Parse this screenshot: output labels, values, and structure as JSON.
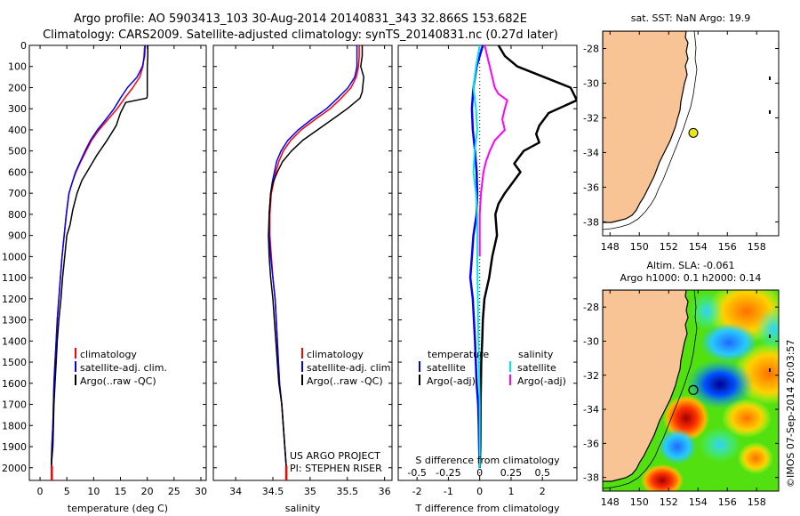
{
  "header": {
    "line1": "Argo profile: AO 5903413_103 30-Aug-2014 20140831_343 32.866S 153.682E",
    "line2": "Climatology: CARS2009. Satellite-adjusted climatology: synTS_20140831.nc (0.27d later)"
  },
  "colors": {
    "climatology": "#ff0000",
    "satellite": "#0000ff",
    "argo": "#000000",
    "sal_satellite": "#00e5ee",
    "sal_argo": "#ff00ff",
    "land": "#f8c496",
    "float_marker": "#e6e619"
  },
  "depth_axis": {
    "ticks": [
      0,
      100,
      200,
      300,
      400,
      500,
      600,
      700,
      800,
      900,
      1000,
      1100,
      1200,
      1300,
      1400,
      1500,
      1600,
      1700,
      1800,
      1900,
      2000
    ],
    "range": [
      0,
      2060
    ]
  },
  "chart_data": [
    {
      "type": "line",
      "xlabel": "temperature (deg C)",
      "xlim": [
        -2,
        31
      ],
      "xticks": [
        0,
        5,
        10,
        15,
        20,
        25,
        30
      ],
      "ylim": [
        0,
        2060
      ],
      "legend": {
        "items": [
          "climatology",
          "satellite-adj. clim.",
          "Argo(..raw -QC)"
        ],
        "placement": "bottom-right"
      },
      "series": [
        {
          "name": "climatology",
          "color": "#ff0000",
          "x": [
            19.5,
            19.4,
            19.2,
            18.6,
            17.3,
            15.8,
            14.4,
            12.7,
            11.0,
            9.6,
            8.6,
            7.6,
            6.7,
            6.0,
            5.4,
            4.9,
            4.5,
            4.1,
            3.8,
            3.5,
            3.2,
            3.0,
            2.8,
            2.6,
            2.5,
            2.4,
            2.2,
            2.1
          ],
          "y": [
            0,
            50,
            100,
            150,
            200,
            250,
            300,
            350,
            400,
            450,
            500,
            550,
            600,
            650,
            700,
            800,
            900,
            1000,
            1100,
            1200,
            1300,
            1400,
            1500,
            1600,
            1700,
            1800,
            1900,
            2000
          ]
        },
        {
          "name": "satellite-adj. clim.",
          "color": "#0000ff",
          "x": [
            19.6,
            19.5,
            19.1,
            18.1,
            16.3,
            15.0,
            13.8,
            12.3,
            10.7,
            9.4,
            8.4,
            7.5,
            6.6,
            6.0,
            5.4,
            4.9,
            4.5,
            4.1,
            3.8,
            3.5,
            3.2,
            3.0,
            2.8,
            2.6,
            2.5,
            2.4,
            2.2,
            2.1
          ],
          "y": [
            0,
            50,
            100,
            150,
            200,
            250,
            300,
            350,
            400,
            450,
            500,
            550,
            600,
            650,
            700,
            800,
            900,
            1000,
            1100,
            1200,
            1300,
            1400,
            1500,
            1600,
            1700,
            1800,
            1900,
            2000
          ]
        },
        {
          "name": "Argo(..raw -QC)",
          "color": "#000000",
          "x": [
            20.1,
            20.1,
            20.0,
            20.0,
            20.0,
            19.9,
            16.0,
            15.0,
            14.2,
            12.5,
            10.6,
            9.2,
            7.8,
            6.9,
            6.1,
            5.6,
            5.0,
            4.6,
            4.2,
            3.9,
            3.5,
            3.2,
            3.0,
            2.8,
            2.6,
            2.5,
            2.4,
            2.2,
            2.1
          ],
          "y": [
            0,
            50,
            100,
            200,
            240,
            250,
            270,
            320,
            380,
            450,
            520,
            580,
            640,
            700,
            780,
            850,
            900,
            1000,
            1100,
            1200,
            1300,
            1400,
            1500,
            1600,
            1700,
            1800,
            1900,
            1960,
            2000
          ]
        },
        {
          "name": "",
          "color": "#ff0000",
          "x": [
            2.2,
            2.2
          ],
          "y": [
            1990,
            2060
          ]
        }
      ]
    },
    {
      "type": "line",
      "xlabel": "salinity",
      "xlim": [
        33.7,
        36.1
      ],
      "xticks": [
        34,
        34.5,
        35,
        35.5,
        36
      ],
      "ylim": [
        0,
        2060
      ],
      "legend": {
        "items": [
          "climatology",
          "satellite-adj. clim.",
          "Argo(..raw -QC)"
        ],
        "placement": "bottom-right"
      },
      "annotation": [
        "US ARGO PROJECT",
        "PI: STEPHEN RISER"
      ],
      "series": [
        {
          "name": "climatology",
          "color": "#ff0000",
          "x": [
            35.66,
            35.66,
            35.65,
            35.62,
            35.55,
            35.42,
            35.27,
            35.07,
            34.88,
            34.74,
            34.64,
            34.58,
            34.54,
            34.51,
            34.48,
            34.46,
            34.46,
            34.48,
            34.5,
            34.53,
            34.56,
            34.59,
            34.62,
            34.64,
            34.66,
            34.68
          ],
          "y": [
            0,
            50,
            100,
            150,
            200,
            250,
            300,
            350,
            400,
            450,
            500,
            550,
            600,
            650,
            700,
            800,
            900,
            1000,
            1100,
            1200,
            1400,
            1600,
            1700,
            1800,
            1900,
            2000
          ]
        },
        {
          "name": "satellite-adj. clim.",
          "color": "#0000ff",
          "x": [
            35.63,
            35.63,
            35.63,
            35.6,
            35.51,
            35.37,
            35.22,
            35.02,
            34.84,
            34.7,
            34.61,
            34.55,
            34.52,
            34.49,
            34.47,
            34.45,
            34.45,
            34.47,
            34.5,
            34.53,
            34.56,
            34.59,
            34.62,
            34.64,
            34.66,
            34.68
          ],
          "y": [
            0,
            50,
            100,
            150,
            200,
            250,
            300,
            350,
            400,
            450,
            500,
            550,
            600,
            650,
            700,
            800,
            900,
            1000,
            1100,
            1200,
            1400,
            1600,
            1700,
            1800,
            1900,
            2000
          ]
        },
        {
          "name": "Argo(..raw -QC)",
          "color": "#000000",
          "x": [
            35.7,
            35.7,
            35.68,
            35.72,
            35.7,
            35.67,
            35.5,
            35.3,
            35.1,
            34.9,
            34.75,
            34.63,
            34.56,
            34.5,
            34.47,
            34.45,
            34.44,
            34.45,
            34.47,
            34.5,
            34.54,
            34.58,
            34.62,
            34.64,
            34.66,
            34.68
          ],
          "y": [
            0,
            50,
            100,
            150,
            220,
            250,
            300,
            350,
            400,
            450,
            500,
            550,
            600,
            650,
            700,
            800,
            900,
            1000,
            1100,
            1200,
            1400,
            1600,
            1700,
            1800,
            1900,
            2000
          ]
        },
        {
          "name": "",
          "color": "#ff0000",
          "x": [
            34.68,
            34.68
          ],
          "y": [
            1990,
            2060
          ]
        }
      ]
    },
    {
      "type": "line",
      "xlabel": "T difference from climatology",
      "xlim": [
        -2.6,
        3.1
      ],
      "xticks": [
        -2,
        -1,
        0,
        1,
        2
      ],
      "ylim": [
        0,
        2060
      ],
      "top_axis": {
        "label": "S difference from climatology",
        "range": [
          -0.65,
          0.775
        ],
        "ticks": [
          -0.5,
          -0.25,
          0,
          0.25,
          0.5
        ],
        "tick_labels": [
          "-0.5",
          "-0.25",
          "0",
          "0.25",
          "0.5"
        ]
      },
      "legend": {
        "temperature_title": "temperature",
        "salinity_title": "salinity",
        "temperature_items": [
          "satellite",
          "Argo(-adj)"
        ],
        "salinity_items": [
          "satellite",
          "Argo(-adj)"
        ],
        "placement": "bottom-center"
      },
      "series": [
        {
          "name": "temperature satellite",
          "color": "#0000ff",
          "x": [
            0.1,
            -0.1,
            -0.2,
            -0.25,
            -0.22,
            -0.15,
            -0.1,
            -0.08,
            -0.1,
            -0.2,
            -0.25,
            -0.3,
            -0.22,
            -0.15,
            -0.1,
            -0.05,
            -0.03,
            -0.02,
            0.0
          ],
          "y": [
            0,
            100,
            200,
            300,
            400,
            500,
            600,
            700,
            800,
            900,
            1000,
            1100,
            1200,
            1400,
            1600,
            1700,
            1800,
            1900,
            2000
          ]
        },
        {
          "name": "temperature Argo(-adj)",
          "color": "#000000",
          "x": [
            0.6,
            0.8,
            1.2,
            2.9,
            3.1,
            2.2,
            1.9,
            1.8,
            1.9,
            1.4,
            1.1,
            1.3,
            1.1,
            0.8,
            0.6,
            0.5,
            0.55,
            0.4,
            0.3,
            0.15,
            0.1,
            0.08,
            0.05,
            0.03,
            0.02,
            0.0
          ],
          "y": [
            0,
            50,
            100,
            200,
            260,
            320,
            380,
            420,
            460,
            500,
            560,
            600,
            640,
            700,
            750,
            800,
            900,
            1000,
            1100,
            1200,
            1300,
            1400,
            1500,
            1700,
            1900,
            2000
          ]
        },
        {
          "name": "salinity satellite",
          "color": "#00e5ee",
          "x": [
            0.0,
            -0.03,
            -0.05,
            -0.03,
            -0.02,
            -0.04,
            -0.05,
            -0.03,
            -0.02,
            -0.02,
            -0.01,
            0.0,
            0.0
          ],
          "y": [
            0,
            100,
            200,
            300,
            400,
            500,
            600,
            700,
            800,
            1000,
            1400,
            1700,
            2000
          ]
        },
        {
          "name": "salinity Argo(-adj)",
          "color": "#ff00ff",
          "x": [
            0.04,
            0.06,
            0.08,
            0.1,
            0.12,
            0.15,
            0.22,
            0.2,
            0.18,
            0.2,
            0.12,
            0.08,
            0.05,
            0.03,
            0.02,
            0.01,
            0.0,
            0.0
          ],
          "y": [
            0,
            50,
            100,
            150,
            200,
            230,
            260,
            300,
            350,
            400,
            450,
            500,
            550,
            600,
            650,
            700,
            800,
            1000
          ]
        }
      ]
    }
  ],
  "maps": {
    "sst": {
      "title": "sat. SST: NaN Argo: 19.9",
      "lon_ticks": [
        148,
        150,
        152,
        154,
        156,
        158
      ],
      "lat_ticks": [
        -28,
        -30,
        -32,
        -34,
        -36,
        -38
      ],
      "lon_range": [
        147.5,
        159.5
      ],
      "lat_range": [
        -38.8,
        -27.0
      ],
      "float_lon": 153.682,
      "float_lat": -32.866
    },
    "sla": {
      "title": "Altim. SLA: -0.061",
      "subtitle": "Argo h1000: 0.1 h2000: 0.14",
      "lon_ticks": [
        148,
        150,
        152,
        154,
        156,
        158
      ],
      "lat_ticks": [
        -28,
        -30,
        -32,
        -34,
        -36,
        -38
      ],
      "lon_range": [
        147.5,
        159.5
      ],
      "lat_range": [
        -38.8,
        -27.0
      ],
      "float_lon": 153.682,
      "float_lat": -32.866
    }
  },
  "watermark": "©IMOS 07-Sep-2014 20:03:57"
}
